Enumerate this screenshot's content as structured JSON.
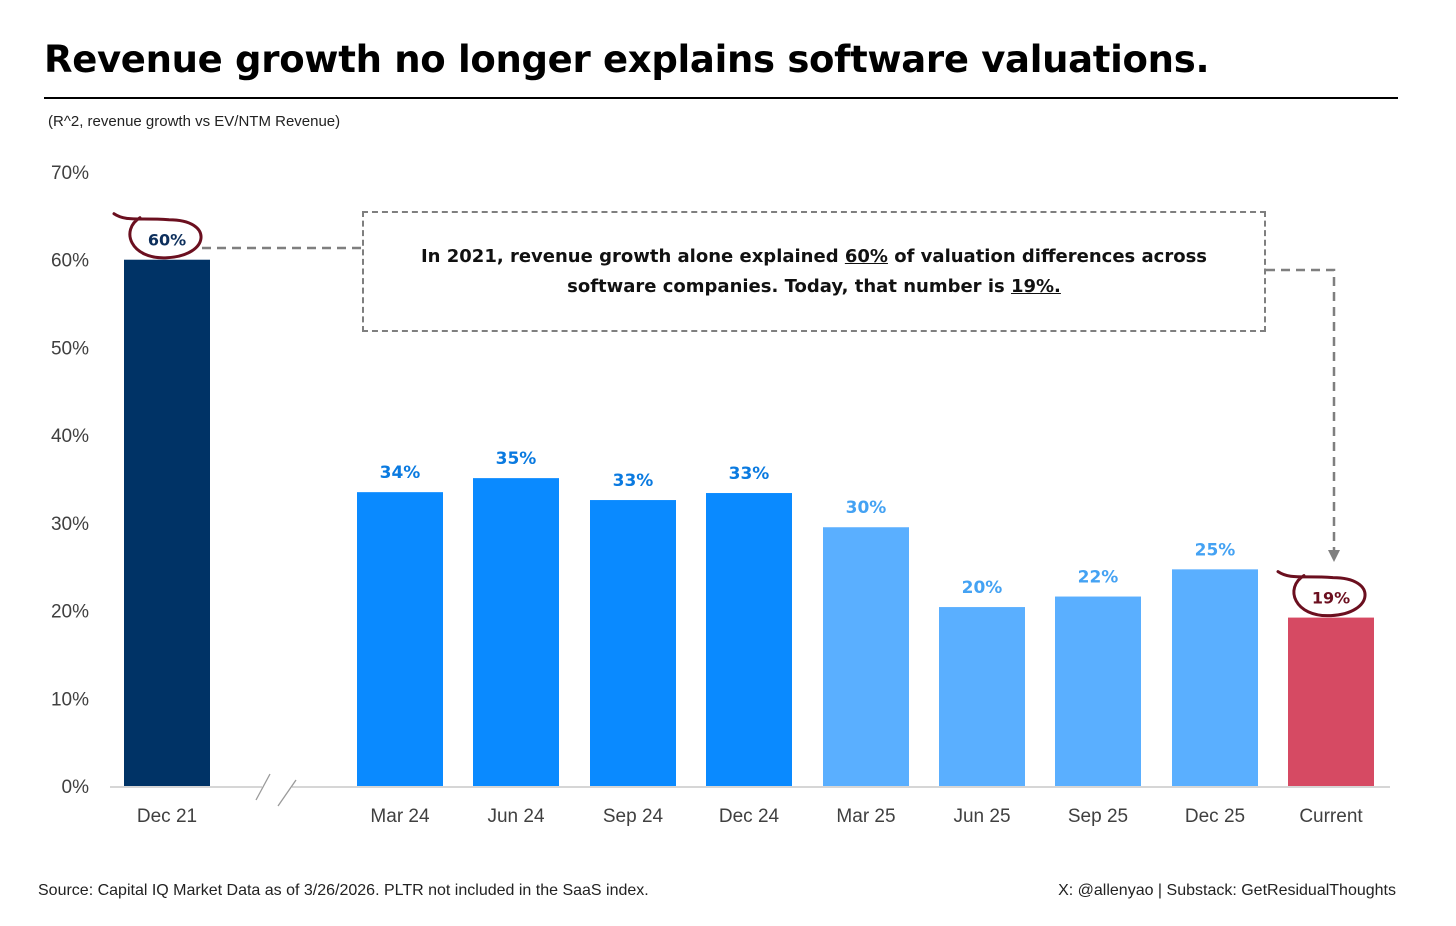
{
  "header": {
    "title": "Revenue growth no longer explains software valuations.",
    "subtitle": "(R^2, revenue growth vs EV/NTM Revenue)"
  },
  "callout": {
    "part1": "In 2021, revenue growth alone explained ",
    "highlight1": "60%",
    "part2": " of valuation differences across software companies. Today, that number is ",
    "highlight2": "19%."
  },
  "footer": {
    "source": "Source: Capital IQ Market Data as of 3/26/2026. PLTR not included in the SaaS index.",
    "credit": "X: @allenyao | Substack: GetResidualThoughts"
  },
  "chart_data": {
    "type": "bar",
    "categories": [
      "Dec 21",
      "Mar 24",
      "Jun 24",
      "Sep 24",
      "Dec 24",
      "Mar 25",
      "Jun 25",
      "Sep 25",
      "Dec 25",
      "Current"
    ],
    "values": [
      60,
      33.5,
      35.1,
      32.6,
      33.4,
      29.5,
      20.4,
      21.6,
      24.7,
      19.2
    ],
    "value_labels": [
      "60%",
      "34%",
      "35%",
      "33%",
      "33%",
      "30%",
      "20%",
      "22%",
      "25%",
      "19%"
    ],
    "colors": [
      "#003366",
      "#0a8aff",
      "#0a8aff",
      "#0a8aff",
      "#0a8aff",
      "#5aafff",
      "#5aafff",
      "#5aafff",
      "#5aafff",
      "#d64a63"
    ],
    "label_colors": [
      "#0d2f5c",
      "#0a7ae0",
      "#0a7ae0",
      "#0a7ae0",
      "#0a7ae0",
      "#44a2f3",
      "#44a2f3",
      "#44a2f3",
      "#44a2f3",
      "#6b0f1f"
    ],
    "y_ticks": [
      "0%",
      "10%",
      "20%",
      "30%",
      "40%",
      "50%",
      "60%",
      "70%"
    ],
    "ylim": [
      0,
      70
    ],
    "grid": false,
    "axis_break_after": "Dec 21",
    "circled": [
      "Dec 21",
      "Current"
    ],
    "annotation_color": "#6b0f1f",
    "connector_color": "#7f7f7f"
  }
}
